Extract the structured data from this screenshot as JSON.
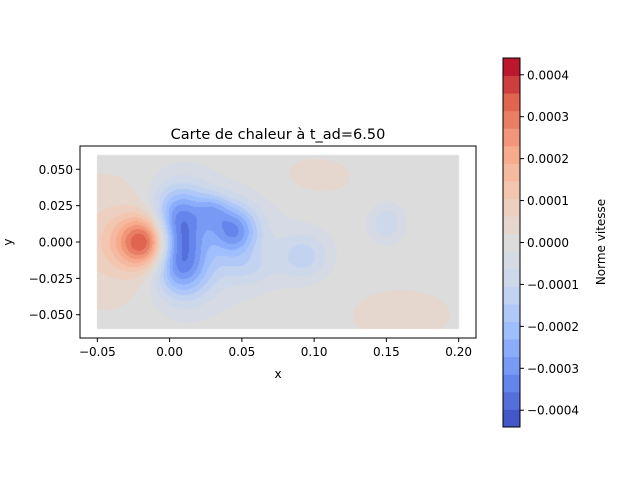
{
  "chart_data": {
    "type": "heatmap",
    "title": "Carte de chaleur à t_ad=6.50",
    "xlabel": "x",
    "ylabel": "y",
    "xlim": [
      -0.062,
      0.212
    ],
    "ylim": [
      -0.066,
      0.066
    ],
    "xticks": [
      -0.05,
      0.0,
      0.05,
      0.1,
      0.15,
      0.2
    ],
    "xtick_labels": [
      "−0.05",
      "0.00",
      "0.05",
      "0.10",
      "0.15",
      "0.20"
    ],
    "yticks": [
      0.05,
      0.025,
      0.0,
      -0.025,
      -0.05
    ],
    "ytick_labels": [
      "0.050",
      "0.025",
      "0.000",
      "−0.025",
      "−0.050"
    ],
    "domain": {
      "x": [
        -0.05,
        0.2
      ],
      "y": [
        -0.06,
        0.06
      ]
    },
    "grid": false,
    "colorbar": {
      "label": "Norme vitesse",
      "colormap": "coolwarm",
      "range": [
        -0.00044,
        0.00044
      ],
      "levels": 21,
      "ticks": [
        0.0004,
        0.0003,
        0.0002,
        0.0001,
        0.0,
        -0.0001,
        -0.0002,
        -0.0003,
        -0.0004
      ],
      "tick_labels": [
        "0.0004",
        "0.0003",
        "0.0002",
        "0.0001",
        "0.0000",
        "−0.0001",
        "−0.0002",
        "−0.0003",
        "−0.0004"
      ]
    },
    "features": [
      {
        "x": -0.012,
        "y": 0.0,
        "amp": 0.00046,
        "sx": 0.016,
        "sy": 0.013
      },
      {
        "x": -0.04,
        "y": 0.0,
        "amp": 8e-05,
        "sx": 0.03,
        "sy": 0.03
      },
      {
        "x": 0.003,
        "y": 0.0,
        "amp": -0.00036,
        "sx": 0.012,
        "sy": 0.016
      },
      {
        "x": 0.008,
        "y": 0.02,
        "amp": -0.00018,
        "sx": 0.014,
        "sy": 0.016
      },
      {
        "x": 0.01,
        "y": -0.02,
        "amp": -0.00018,
        "sx": 0.014,
        "sy": 0.016
      },
      {
        "x": 0.025,
        "y": 0.0,
        "amp": -0.0001,
        "sx": 0.035,
        "sy": 0.025
      },
      {
        "x": 0.045,
        "y": 0.008,
        "amp": -0.00024,
        "sx": 0.011,
        "sy": 0.012
      },
      {
        "x": 0.03,
        "y": 0.022,
        "amp": -0.00012,
        "sx": 0.008,
        "sy": 0.008
      },
      {
        "x": 0.055,
        "y": -0.018,
        "amp": -6e-05,
        "sx": 0.012,
        "sy": 0.008
      },
      {
        "x": 0.093,
        "y": -0.01,
        "amp": -0.00012,
        "sx": 0.012,
        "sy": 0.011
      },
      {
        "x": 0.15,
        "y": 0.013,
        "amp": -0.0001,
        "sx": 0.008,
        "sy": 0.009
      },
      {
        "x": 0.1,
        "y": 0.045,
        "amp": 3e-05,
        "sx": 0.03,
        "sy": 0.015
      },
      {
        "x": 0.16,
        "y": -0.05,
        "amp": 3e-05,
        "sx": 0.04,
        "sy": 0.02
      }
    ],
    "colormap_stops": [
      "#3b4cc0",
      "#6788ee",
      "#9abbff",
      "#c9d7f0",
      "#dddcdc",
      "#f2cbb7",
      "#f7a889",
      "#e26952",
      "#b40426"
    ]
  }
}
